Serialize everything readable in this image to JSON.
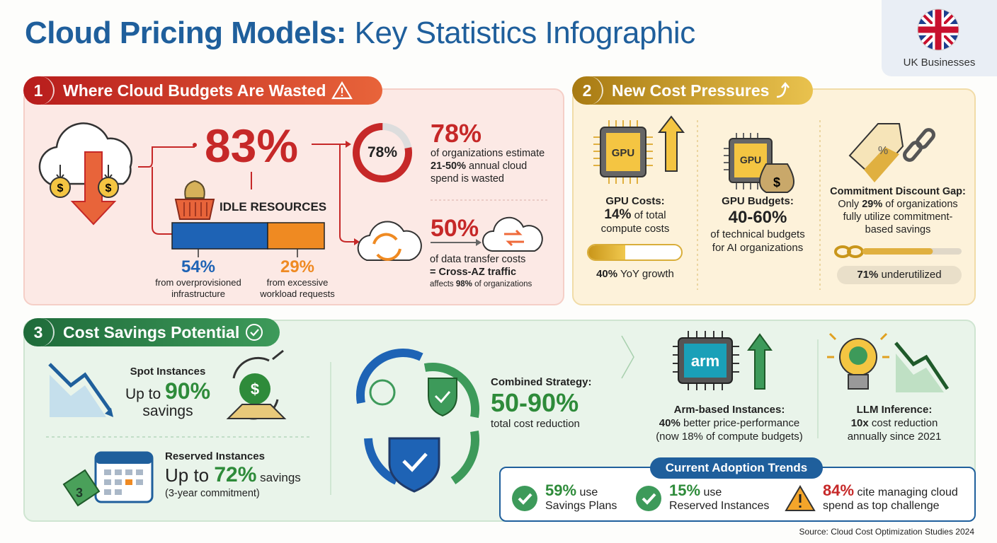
{
  "title": {
    "part1": "Cloud Pricing Models:",
    "part2": " Key Statistics Infographic"
  },
  "badge": {
    "label": "UK Businesses",
    "icon": "uk-flag-icon"
  },
  "colors": {
    "red": "#c62828",
    "gold": "#d9ae3a",
    "green": "#2e8b3a",
    "blue": "#1f5f9c",
    "orange": "#ef8a22"
  },
  "section1": {
    "num": "1",
    "title": "Where Cloud Budgets Are Wasted",
    "icon": "warning-icon",
    "idle": {
      "value": "83%",
      "label": "IDLE RESOURCES",
      "split": [
        {
          "value": "54%",
          "fraction": 0.54,
          "line1": "from overprovisioned",
          "line2": "infrastructure"
        },
        {
          "value": "29%",
          "fraction": 0.29,
          "line1": "from excessive",
          "line2": "workload requests"
        }
      ]
    },
    "estimate": {
      "donut_value": "78%",
      "donut_fraction": 0.78,
      "value": "78%",
      "line1": "of organizations estimate",
      "line2_bold": "21-50%",
      "line2": " annual cloud",
      "line3": "spend is wasted"
    },
    "transfer": {
      "value": "50%",
      "line1": "of data transfer costs",
      "line2": "= Cross-AZ traffic",
      "line3a": "affects ",
      "line3b": "98%",
      "line3c": " of organizations"
    }
  },
  "section2": {
    "num": "2",
    "title": "New Cost Pressures",
    "icon": "trend-up-icon",
    "gpu_costs": {
      "chip": "GPU",
      "title": "GPU Costs:",
      "value": "14%",
      "line1": " of total",
      "line2": "compute costs",
      "growth_fraction": 0.4,
      "growth_value": "40%",
      "growth_label": " YoY growth"
    },
    "gpu_budgets": {
      "chip": "GPU",
      "title": "GPU Budgets:",
      "value": "40-60%",
      "line1": "of technical budgets",
      "line2": "for AI organizations"
    },
    "commitment": {
      "title": "Commitment Discount Gap:",
      "line1a": "Only ",
      "line1b": "29%",
      "line1c": " of organizations",
      "line2": "fully utilize commitment-",
      "line3": "based savings",
      "bar_fraction": 0.71,
      "pill_value": "71%",
      "pill_label": " underutilized"
    }
  },
  "section3": {
    "num": "3",
    "title": "Cost Savings Potential",
    "icon": "check-circle-icon",
    "spot": {
      "title": "Spot Instances",
      "prefix": "Up to ",
      "value": "90%",
      "suffix": "savings"
    },
    "reserved": {
      "title": "Reserved Instances",
      "prefix": "Up to ",
      "value": "72%",
      "suffix": " savings",
      "note": "(3-year commitment)",
      "tag": "3"
    },
    "combined": {
      "title": "Combined Strategy:",
      "value": "50-90%",
      "label": "total cost reduction"
    },
    "arm": {
      "chip": "arm",
      "title": "Arm-based Instances:",
      "line1a": "40%",
      "line1b": " better price-performance",
      "line2": "(now 18% of compute budgets)"
    },
    "llm": {
      "title": "LLM Inference:",
      "line1a": "10x",
      "line1b": " cost reduction",
      "line2": "annually since 2021"
    }
  },
  "adoption": {
    "title": "Current Adoption Trends",
    "items": [
      {
        "value": "59%",
        "suffix": " use",
        "line2": "Savings Plans",
        "icon": "check-icon"
      },
      {
        "value": "15%",
        "suffix": " use",
        "line2": "Reserved Instances",
        "icon": "check-icon"
      },
      {
        "value": "84%",
        "suffix": " cite managing cloud",
        "line2": "spend as top challenge",
        "icon": "warning-icon"
      }
    ]
  },
  "source": "Source: Cloud Cost Optimization Studies 2024"
}
